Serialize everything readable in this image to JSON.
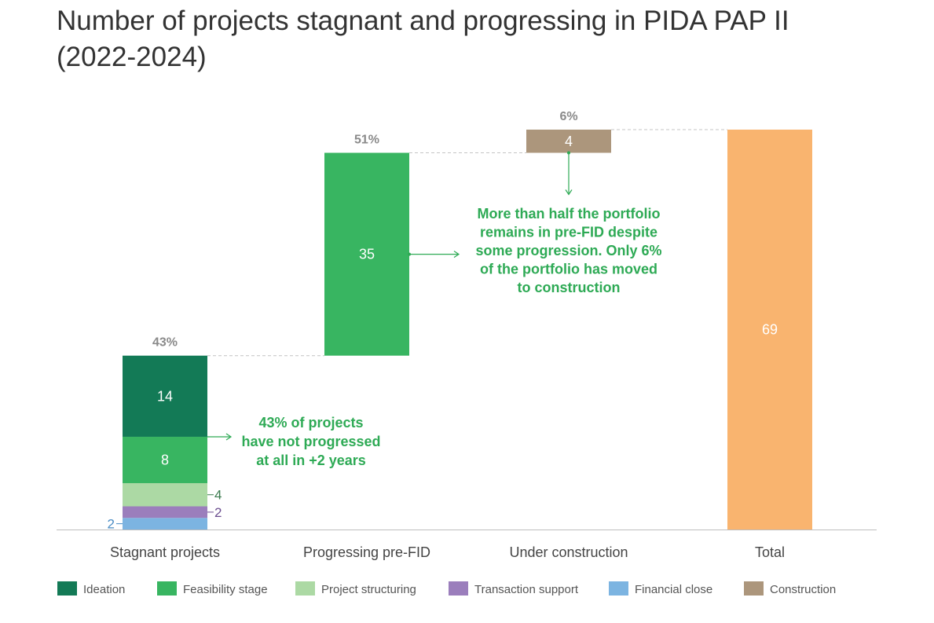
{
  "title": "Number of projects stagnant and progressing in PIDA PAP II (2022-2024)",
  "chart_data": {
    "type": "bar",
    "subtype": "waterfall-stacked",
    "title": "Number of projects stagnant and progressing in PIDA PAP II (2022-2024)",
    "xlabel": "",
    "ylabel": "",
    "ylim": [
      0,
      69
    ],
    "grid": false,
    "legend_position": "bottom",
    "categories": [
      "Stagnant projects",
      "Progressing pre-FID",
      "Under construction",
      "Total"
    ],
    "series": [
      {
        "name": "Financial close",
        "color": "#7cb4e1",
        "values": [
          2,
          0,
          0,
          0
        ]
      },
      {
        "name": "Transaction support",
        "color": "#9b7ebc",
        "values": [
          2,
          0,
          0,
          0
        ]
      },
      {
        "name": "Project structuring",
        "color": "#acd9a4",
        "values": [
          4,
          0,
          0,
          0
        ]
      },
      {
        "name": "Feasibility stage",
        "color": "#38b561",
        "values": [
          8,
          35,
          0,
          0
        ]
      },
      {
        "name": "Ideation",
        "color": "#137a56",
        "values": [
          14,
          0,
          0,
          0
        ]
      },
      {
        "name": "Construction",
        "color": "#ac967c",
        "values": [
          0,
          0,
          4,
          0
        ]
      },
      {
        "name": "Total",
        "color": "#f9b46f",
        "values": [
          0,
          0,
          0,
          69
        ]
      }
    ],
    "bar_bases": [
      0,
      30,
      65,
      0
    ],
    "percent_labels": [
      "43%",
      "51%",
      "6%",
      ""
    ],
    "segment_labels": [
      {
        "bar": 0,
        "series": "Financial close",
        "text": "2",
        "position": "left"
      },
      {
        "bar": 0,
        "series": "Transaction support",
        "text": "2",
        "position": "right"
      },
      {
        "bar": 0,
        "series": "Project structuring",
        "text": "4",
        "position": "right"
      },
      {
        "bar": 0,
        "series": "Feasibility stage",
        "text": "8",
        "position": "inside"
      },
      {
        "bar": 0,
        "series": "Ideation",
        "text": "14",
        "position": "inside"
      },
      {
        "bar": 1,
        "series": "Feasibility stage",
        "text": "35",
        "position": "inside"
      },
      {
        "bar": 2,
        "series": "Construction",
        "text": "4",
        "position": "inside"
      },
      {
        "bar": 3,
        "series": "Total",
        "text": "69",
        "position": "inside"
      }
    ],
    "annotations": [
      {
        "lines": [
          "43% of projects",
          "have not progressed",
          "at all in +2 years"
        ]
      },
      {
        "lines": [
          "More than half the portfolio",
          "remains in pre-FID despite",
          "some progression. Only 6%",
          "of the portfolio has moved",
          "to construction"
        ]
      }
    ],
    "legend": [
      {
        "label": "Ideation",
        "color": "#137a56"
      },
      {
        "label": "Feasibility stage",
        "color": "#38b561"
      },
      {
        "label": "Project structuring",
        "color": "#acd9a4"
      },
      {
        "label": "Transaction support",
        "color": "#9b7ebc"
      },
      {
        "label": "Financial close",
        "color": "#7cb4e1"
      },
      {
        "label": "Construction",
        "color": "#ac967c"
      }
    ]
  }
}
